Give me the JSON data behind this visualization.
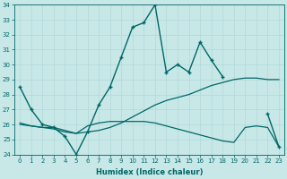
{
  "xlabel": "Humidex (Indice chaleur)",
  "ylabel": "",
  "xlim": [
    -0.5,
    23.5
  ],
  "ylim": [
    24,
    34
  ],
  "yticks": [
    24,
    25,
    26,
    27,
    28,
    29,
    30,
    31,
    32,
    33,
    34
  ],
  "xticks": [
    0,
    1,
    2,
    3,
    4,
    5,
    6,
    7,
    8,
    9,
    10,
    11,
    12,
    13,
    14,
    15,
    16,
    17,
    18,
    19,
    20,
    21,
    22,
    23
  ],
  "bg_color": "#c8e8e8",
  "line_color": "#006666",
  "grid_color": "#b0d8d8",
  "lines": [
    {
      "x": [
        0,
        1,
        2,
        3,
        4,
        5,
        6,
        7,
        8,
        9,
        10,
        11,
        12,
        13,
        14,
        15,
        16,
        17,
        18,
        19,
        20,
        21,
        22,
        23
      ],
      "y": [
        28.5,
        27.0,
        26.0,
        25.8,
        25.2,
        24.0,
        25.5,
        27.3,
        28.5,
        30.5,
        32.5,
        32.8,
        34.0,
        29.5,
        30.0,
        29.5,
        31.5,
        30.3,
        29.2,
        null,
        null,
        null,
        26.7,
        24.5
      ],
      "has_marker": true,
      "markersize": 2.5,
      "linewidth": 1.0
    },
    {
      "x": [
        0,
        1,
        2,
        3,
        4,
        5,
        6,
        7,
        8,
        9,
        10,
        11,
        12,
        13,
        14,
        15,
        16,
        17,
        18,
        19,
        20,
        21,
        22,
        23
      ],
      "y": [
        26.1,
        25.9,
        25.8,
        25.7,
        25.5,
        25.4,
        25.5,
        25.6,
        25.8,
        26.1,
        26.5,
        26.9,
        27.3,
        27.6,
        27.8,
        28.0,
        28.3,
        28.6,
        28.8,
        29.0,
        29.1,
        29.1,
        29.0,
        29.0
      ],
      "has_marker": false,
      "markersize": 0,
      "linewidth": 0.9
    },
    {
      "x": [
        0,
        1,
        2,
        3,
        4,
        5,
        6,
        7,
        8,
        9,
        10,
        11,
        12,
        13,
        14,
        15,
        16,
        17,
        18,
        19,
        20,
        21,
        22,
        23
      ],
      "y": [
        26.0,
        25.9,
        25.8,
        25.8,
        25.6,
        25.4,
        25.9,
        26.1,
        26.2,
        26.2,
        26.2,
        26.2,
        26.1,
        25.9,
        25.7,
        25.5,
        25.3,
        25.1,
        24.9,
        24.8,
        25.8,
        25.9,
        25.8,
        24.5
      ],
      "has_marker": false,
      "markersize": 0,
      "linewidth": 0.9
    }
  ]
}
